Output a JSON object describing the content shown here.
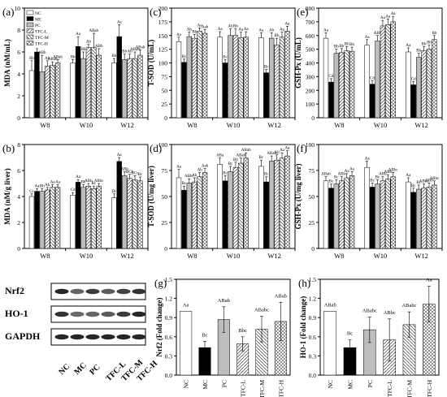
{
  "colors": {
    "axis": "#000000",
    "black": "#000000",
    "gray": "#bdbdbd",
    "white": "#ffffff",
    "hatch": "#555555"
  },
  "legend": [
    "NC",
    "MC",
    "PC",
    "TFC-L",
    "TFC-M",
    "TFC-H"
  ],
  "groups": [
    "NC",
    "MC",
    "PC",
    "TFC-L",
    "TFC-M",
    "TFC-H"
  ],
  "western_blot": {
    "labels": [
      "Nrf2",
      "HO-1",
      "GAPDH"
    ],
    "lanes": [
      "NC",
      "MC",
      "PC",
      "TFC-L",
      "TFC-M",
      "TFC-H"
    ]
  },
  "chart_data": [
    {
      "id": "a",
      "panel_label": "(a)",
      "type": "bar",
      "ylabel": "MDA (nM/mL)",
      "ylim": [
        0,
        10
      ],
      "yticks": [
        0,
        2,
        4,
        6,
        8,
        10
      ],
      "categories": [
        "W8",
        "W10",
        "W12"
      ],
      "series": [
        {
          "name": "NC",
          "values": [
            4.3,
            5.0,
            5.0
          ],
          "err": [
            0.9,
            0.3,
            0.4
          ],
          "labels": [
            "Bb",
            "Bb",
            "Bb"
          ]
        },
        {
          "name": "MC",
          "values": [
            6.0,
            6.5,
            7.4
          ],
          "err": [
            0.3,
            0.9,
            1.1
          ],
          "labels": [
            "Aa",
            "Aa",
            "Aa"
          ]
        },
        {
          "name": "PC",
          "values": [
            4.2,
            5.4,
            5.3
          ],
          "err": [
            1.5,
            0.6,
            0.5
          ],
          "labels": [
            "ABb",
            "Bb",
            "Bb"
          ]
        },
        {
          "name": "TFC-L",
          "values": [
            4.7,
            6.4,
            5.4
          ],
          "err": [
            0.5,
            0.3,
            0.4
          ],
          "labels": [
            "Ab",
            "Ab",
            "Ab"
          ]
        },
        {
          "name": "TFC-M",
          "values": [
            4.8,
            6.4,
            5.4
          ],
          "err": [
            0.3,
            1.3,
            0.6
          ],
          "labels": [
            "ABab",
            "ABab",
            "ABab"
          ]
        },
        {
          "name": "TFC-H",
          "values": [
            5.0,
            5.7,
            5.7
          ],
          "err": [
            0.3,
            0.6,
            0.5
          ],
          "labels": [
            "ABab",
            "ABb",
            "ABab"
          ]
        }
      ]
    },
    {
      "id": "c",
      "panel_label": "(c)",
      "type": "bar",
      "ylabel": "T-SOD (U/mL)",
      "ylim": [
        0,
        200
      ],
      "yticks": [
        0,
        25,
        50,
        75,
        100,
        125,
        150,
        175,
        200
      ],
      "categories": [
        "W8",
        "W10",
        "W12"
      ],
      "series": [
        {
          "name": "NC",
          "values": [
            139,
            147,
            146
          ],
          "err": [
            8,
            10,
            9
          ],
          "labels": [
            "Aa",
            "Aa",
            "Aa"
          ]
        },
        {
          "name": "MC",
          "values": [
            101,
            100,
            82
          ],
          "err": [
            6,
            6,
            6
          ],
          "labels": [
            "Bc",
            "Bc",
            "Bc"
          ]
        },
        {
          "name": "PC",
          "values": [
            148,
            150,
            145
          ],
          "err": [
            8,
            12,
            10
          ],
          "labels": [
            "Ab",
            "Ab",
            "Ab"
          ]
        },
        {
          "name": "TFC-L",
          "values": [
            145,
            150,
            133
          ],
          "err": [
            7,
            12,
            12
          ],
          "labels": [
            "Bb",
            "Bb",
            "Bb"
          ]
        },
        {
          "name": "TFC-M",
          "values": [
            158,
            146,
            147
          ],
          "err": [
            6,
            10,
            9
          ],
          "labels": [
            "Aa",
            "Aa",
            "Aa"
          ]
        },
        {
          "name": "TFC-H",
          "values": [
            154,
            147,
            158
          ],
          "err": [
            7,
            10,
            9
          ],
          "labels": [
            "Aab",
            "Aa",
            "Aa"
          ]
        }
      ]
    },
    {
      "id": "e",
      "panel_label": "(e)",
      "type": "bar",
      "ylabel": "GSH-Px (U/mL)",
      "ylim": [
        0,
        800
      ],
      "yticks": [
        0,
        100,
        200,
        300,
        400,
        500,
        600,
        700,
        800
      ],
      "categories": [
        "W8",
        "W10",
        "W12"
      ],
      "series": [
        {
          "name": "NC",
          "values": [
            580,
            530,
            480
          ],
          "err": [
            40,
            40,
            30
          ],
          "labels": [
            "Aa",
            "Aa",
            "Aa"
          ]
        },
        {
          "name": "MC",
          "values": [
            260,
            245,
            240
          ],
          "err": [
            25,
            25,
            25
          ],
          "labels": [
            "Cd",
            "Cd",
            "Cd"
          ]
        },
        {
          "name": "PC",
          "values": [
            470,
            560,
            440
          ],
          "err": [
            30,
            40,
            30
          ],
          "labels": [
            "Bb",
            "ABb",
            "Bb"
          ]
        },
        {
          "name": "TFC-L",
          "values": [
            475,
            670,
            490
          ],
          "err": [
            30,
            40,
            30
          ],
          "labels": [
            "Bb",
            "Aa",
            "Bb"
          ]
        },
        {
          "name": "TFC-M",
          "values": [
            490,
            680,
            500
          ],
          "err": [
            30,
            40,
            30
          ],
          "labels": [
            "Bb",
            "Aa",
            "Bb"
          ]
        },
        {
          "name": "TFC-H",
          "values": [
            485,
            700,
            570
          ],
          "err": [
            30,
            40,
            30
          ],
          "labels": [
            "Bb",
            "Aa",
            "Bb"
          ]
        }
      ]
    },
    {
      "id": "b",
      "panel_label": "(b)",
      "type": "bar",
      "ylabel": "MDA (nM/g liver)",
      "ylim": [
        0,
        8
      ],
      "yticks": [
        0,
        2,
        4,
        6,
        8
      ],
      "categories": [
        "W8",
        "W10",
        "W12"
      ],
      "series": [
        {
          "name": "NC",
          "values": [
            4.0,
            4.1,
            3.9
          ],
          "err": [
            0.2,
            0.2,
            0.3
          ],
          "labels": [
            "Cc",
            "Cd",
            "Dc"
          ]
        },
        {
          "name": "MC",
          "values": [
            4.4,
            5.1,
            6.7
          ],
          "err": [
            0.2,
            0.2,
            0.3
          ],
          "labels": [
            "Aa",
            "Aa",
            "Aa"
          ]
        },
        {
          "name": "PC",
          "values": [
            4.4,
            4.7,
            5.6
          ],
          "err": [
            0.2,
            0.2,
            0.3
          ],
          "labels": [
            "Bb",
            "Bb",
            "ABb"
          ]
        },
        {
          "name": "TFC-L",
          "values": [
            4.5,
            4.8,
            5.4
          ],
          "err": [
            0.2,
            0.2,
            0.3
          ],
          "labels": [
            "Ab",
            "ABb",
            "BCb"
          ]
        },
        {
          "name": "TFC-M",
          "values": [
            4.7,
            4.6,
            5.3
          ],
          "err": [
            0.2,
            0.2,
            0.3
          ],
          "labels": [
            "Aa",
            "Bc",
            "BCc"
          ]
        },
        {
          "name": "TFC-H",
          "values": [
            4.7,
            4.8,
            5.2
          ],
          "err": [
            0.2,
            0.2,
            0.3
          ],
          "labels": [
            "Aa",
            "ABbc",
            "Bc"
          ]
        }
      ]
    },
    {
      "id": "d",
      "panel_label": "(d)",
      "type": "bar",
      "ylabel": "T-SOD (U/mg liver)",
      "ylim": [
        0,
        100
      ],
      "yticks": [
        0,
        25,
        50,
        75,
        100
      ],
      "categories": [
        "W8",
        "W10",
        "W12"
      ],
      "series": [
        {
          "name": "NC",
          "values": [
            68,
            81,
            79
          ],
          "err": [
            8,
            6,
            6
          ],
          "labels": [
            "Aa",
            "ABa",
            "Bc"
          ]
        },
        {
          "name": "MC",
          "values": [
            56,
            65,
            64
          ],
          "err": [
            4,
            5,
            5
          ],
          "labels": [
            "Bc",
            "Bc",
            "Bc"
          ]
        },
        {
          "name": "PC",
          "values": [
            63,
            74,
            84
          ],
          "err": [
            4,
            5,
            5
          ],
          "labels": [
            "ABbc",
            "Bc",
            "ABab"
          ]
        },
        {
          "name": "TFC-L",
          "values": [
            64,
            78,
            85
          ],
          "err": [
            4,
            5,
            5
          ],
          "labels": [
            "Ab",
            "Bb",
            "Ab"
          ]
        },
        {
          "name": "TFC-M",
          "values": [
            69,
            82,
            87
          ],
          "err": [
            4,
            5,
            5
          ],
          "labels": [
            "Ab",
            "ABab",
            "Aa"
          ]
        },
        {
          "name": "TFC-H",
          "values": [
            73,
            87,
            89
          ],
          "err": [
            4,
            5,
            5
          ],
          "labels": [
            "Aab",
            "ABab",
            "Aa"
          ]
        }
      ]
    },
    {
      "id": "f",
      "panel_label": "(f)",
      "type": "bar",
      "ylabel": "GSH-Px (U/mg liver)",
      "ylim": [
        0,
        100
      ],
      "yticks": [
        0,
        25,
        50,
        75,
        100
      ],
      "categories": [
        "W8",
        "W10",
        "W12"
      ],
      "series": [
        {
          "name": "NC",
          "values": [
            65,
            78,
            64
          ],
          "err": [
            4,
            6,
            4
          ],
          "labels": [
            "ABab",
            "Aa",
            "Aa"
          ]
        },
        {
          "name": "MC",
          "values": [
            58,
            59,
            54
          ],
          "err": [
            4,
            4,
            4
          ],
          "labels": [
            "Bc",
            "Bc",
            "Bc"
          ]
        },
        {
          "name": "PC",
          "values": [
            62,
            62,
            57
          ],
          "err": [
            4,
            4,
            4
          ],
          "labels": [
            "Bc",
            "Bc",
            "Bc"
          ]
        },
        {
          "name": "TFC-L",
          "values": [
            65,
            65,
            58
          ],
          "err": [
            4,
            4,
            4
          ],
          "labels": [
            "ABb",
            "ABb",
            "ABbc"
          ]
        },
        {
          "name": "TFC-M",
          "values": [
            68,
            67,
            59
          ],
          "err": [
            4,
            4,
            4
          ],
          "labels": [
            "Aa",
            "ABb",
            "ABb"
          ]
        },
        {
          "name": "TFC-H",
          "values": [
            70,
            69,
            61
          ],
          "err": [
            4,
            4,
            4
          ],
          "labels": [
            "Aa",
            "ABbc",
            "ABbc"
          ]
        }
      ]
    },
    {
      "id": "g",
      "panel_label": "(g)",
      "type": "bar",
      "ylabel": "Nrf2 (Fold change)",
      "ylim": [
        0,
        1.5
      ],
      "yticks": [
        0.0,
        0.3,
        0.6,
        0.9,
        1.2,
        1.5
      ],
      "categories": [
        "NC",
        "MC",
        "PC",
        "TFC-L",
        "TFC-M",
        "TFC-H"
      ],
      "values": [
        1.0,
        0.43,
        0.87,
        0.49,
        0.72,
        0.84
      ],
      "err": [
        0.0,
        0.1,
        0.2,
        0.11,
        0.2,
        0.3
      ],
      "labels": [
        "Aa",
        "Bc",
        "ABab",
        "Bbc",
        "ABabc",
        "ABab"
      ]
    },
    {
      "id": "h",
      "panel_label": "(h)",
      "type": "bar",
      "ylabel": "HO-1 (Fold change)",
      "ylim": [
        0,
        1.5
      ],
      "yticks": [
        0.0,
        0.3,
        0.6,
        0.9,
        1.2,
        1.5
      ],
      "categories": [
        "NC",
        "MC",
        "PC",
        "TFC-L",
        "TFC-M",
        "TFC-H"
      ],
      "values": [
        1.0,
        0.43,
        0.71,
        0.55,
        0.79,
        1.11
      ],
      "err": [
        0.0,
        0.12,
        0.2,
        0.33,
        0.2,
        0.28
      ],
      "labels": [
        "ABab",
        "Bc",
        "ABabc",
        "ABbc",
        "ABabc",
        "Aa"
      ]
    }
  ]
}
